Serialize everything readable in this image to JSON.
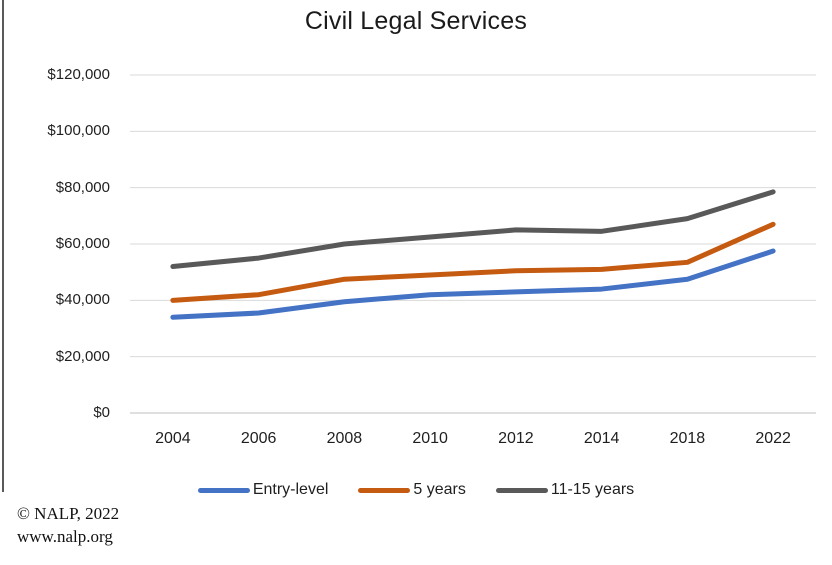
{
  "title": "Civil Legal Services",
  "footer": {
    "line1": "© NALP, 2022",
    "line2": "www.nalp.org"
  },
  "colors": {
    "entry_level": "#4472C4",
    "five_years": "#C55A11",
    "eleven_fifteen_years": "#595959",
    "gridline": "#D9D9D9",
    "axis_line": "#BFBFBF",
    "text": "#1f1f1f"
  },
  "chart_data": {
    "type": "line",
    "title": "Civil Legal Services",
    "categories": [
      "2004",
      "2006",
      "2008",
      "2010",
      "2012",
      "2014",
      "2018",
      "2022"
    ],
    "series": [
      {
        "name": "Entry-level",
        "color": "#4472C4",
        "values": [
          34000,
          35500,
          39500,
          42000,
          43000,
          44000,
          47500,
          57500
        ]
      },
      {
        "name": "5 years",
        "color": "#C55A11",
        "values": [
          40000,
          42000,
          47500,
          49000,
          50500,
          51000,
          53500,
          67000
        ]
      },
      {
        "name": "11-15 years",
        "color": "#595959",
        "values": [
          52000,
          55000,
          60000,
          62500,
          65000,
          64500,
          69000,
          78500
        ]
      }
    ],
    "xlabel": "",
    "ylabel": "",
    "ylim": [
      0,
      120000
    ],
    "yticks": [
      {
        "value": 0,
        "label": "$0"
      },
      {
        "value": 20000,
        "label": "$20,000"
      },
      {
        "value": 40000,
        "label": "$40,000"
      },
      {
        "value": 60000,
        "label": "$60,000"
      },
      {
        "value": 80000,
        "label": "$80,000"
      },
      {
        "value": 100000,
        "label": "$100,000"
      },
      {
        "value": 120000,
        "label": "$120,000"
      }
    ],
    "grid": true,
    "legend_position": "bottom"
  }
}
